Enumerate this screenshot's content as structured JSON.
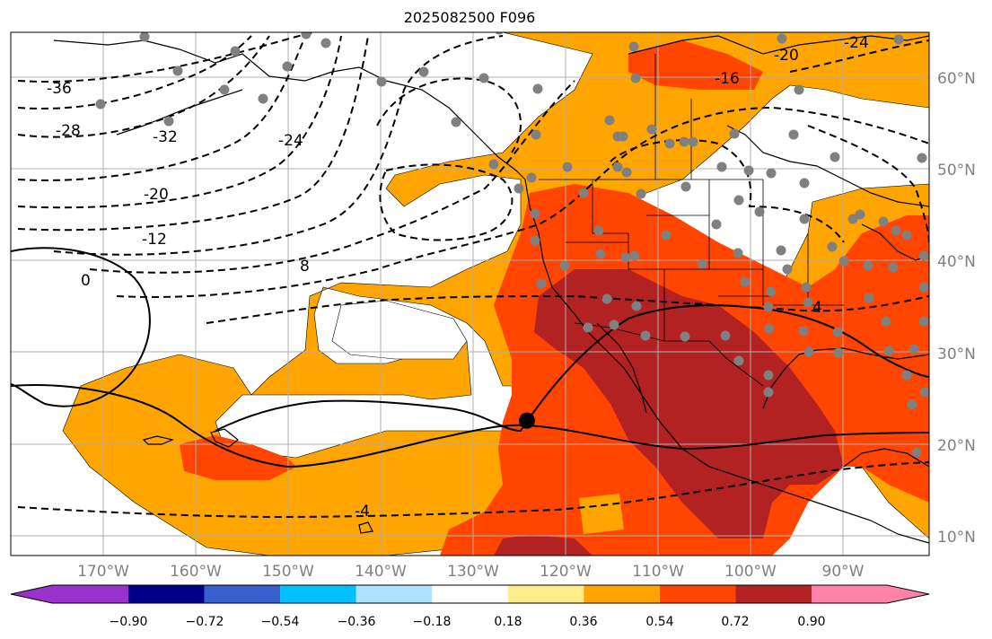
{
  "title": "2025082500 F096",
  "map": {
    "projection": "cylindrical",
    "lon_range": [
      -180,
      -80
    ],
    "lat_range": [
      8,
      65
    ],
    "grid": true,
    "colors": {
      "ocean": "#ffffff",
      "gridline": "#b0b0b0",
      "coast": "#000000",
      "station": "#808080",
      "marker": "#000000"
    },
    "lat_ticks": [
      "10°N",
      "20°N",
      "30°N",
      "40°N",
      "50°N",
      "60°N"
    ],
    "lon_ticks": [
      "170°W",
      "160°W",
      "150°W",
      "140°W",
      "130°W",
      "120°W",
      "110°W",
      "100°W",
      "90°W"
    ],
    "contour_labels": [
      "-36",
      "-28",
      "-32",
      "-24",
      "-20",
      "-12",
      "8",
      "0",
      "4",
      "-4",
      "-16",
      "-20",
      "-24"
    ],
    "storm_marker": {
      "lon": -123.8,
      "lat": 22.7
    }
  },
  "colorbar": {
    "levels": [
      "−0.90",
      "−0.72",
      "−0.54",
      "−0.36",
      "−0.18",
      "0.18",
      "0.36",
      "0.54",
      "0.72",
      "0.90"
    ],
    "colors": [
      "#9932cc",
      "#00008b",
      "#3a5fcd",
      "#00bfff",
      "#b0e2ff",
      "#ffffff",
      "#ffec8b",
      "#ffa500",
      "#ff4500",
      "#b22222",
      "#ff82ab"
    ],
    "extend": "both"
  }
}
